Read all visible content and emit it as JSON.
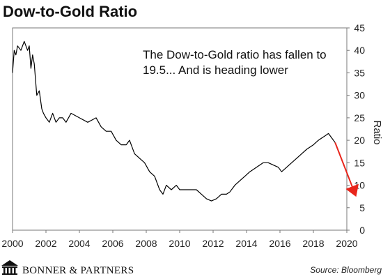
{
  "chart_data": {
    "type": "line",
    "title": "Dow-to-Gold Ratio",
    "ylabel": "Ratio",
    "xlim": [
      2000,
      2020
    ],
    "ylim": [
      0,
      45
    ],
    "x_ticks": [
      2000,
      2002,
      2004,
      2006,
      2008,
      2010,
      2012,
      2014,
      2016,
      2018,
      2020
    ],
    "y_ticks": [
      0,
      5,
      10,
      15,
      20,
      25,
      30,
      35,
      40,
      45
    ],
    "grid": false,
    "annotation": "The Dow-to-Gold ratio has fallen to 19.5... And is heading lower",
    "annotation_lines": [
      "The Dow-to-Gold ratio has fallen to",
      "19.5... And is heading lower"
    ],
    "series": [
      {
        "color": "#000000",
        "x": [
          2000.0,
          2000.1,
          2000.2,
          2000.3,
          2000.5,
          2000.7,
          2000.9,
          2001.0,
          2001.1,
          2001.2,
          2001.3,
          2001.45,
          2001.6,
          2001.75,
          2001.85,
          2002.0,
          2002.2,
          2002.4,
          2002.6,
          2002.8,
          2003.0,
          2003.2,
          2003.5,
          2004.0,
          2004.5,
          2005.0,
          2005.3,
          2005.6,
          2005.9,
          2006.2,
          2006.5,
          2006.8,
          2007.0,
          2007.3,
          2007.6,
          2007.9,
          2008.2,
          2008.5,
          2008.8,
          2009.0,
          2009.2,
          2009.5,
          2009.8,
          2010.0,
          2010.5,
          2011.0,
          2011.3,
          2011.6,
          2011.9,
          2012.2,
          2012.5,
          2012.8,
          2013.0,
          2013.3,
          2013.6,
          2013.9,
          2014.2,
          2014.6,
          2015.0,
          2015.3,
          2015.6,
          2015.9,
          2016.1,
          2016.4,
          2016.7,
          2017.0,
          2017.3,
          2017.6,
          2018.0,
          2018.3,
          2018.5,
          2018.7,
          2018.9,
          2019.1,
          2019.3
        ],
        "y": [
          35,
          40,
          39,
          41,
          40,
          42,
          40,
          41,
          36,
          39,
          37,
          30,
          31,
          27,
          26,
          25,
          24,
          26,
          24,
          25,
          25,
          24,
          26,
          25,
          24,
          25,
          23,
          22,
          22,
          20,
          19,
          19,
          20,
          17,
          16,
          15,
          13,
          12,
          9,
          8,
          10,
          9,
          10,
          9,
          9,
          9,
          8,
          7,
          6.5,
          7,
          8,
          8,
          8.5,
          10,
          11,
          12,
          13,
          14,
          15,
          15,
          14.5,
          14,
          13,
          14,
          15,
          16,
          17,
          18,
          19,
          20,
          20.5,
          21,
          21.5,
          20.5,
          19.5
        ]
      }
    ],
    "arrow": {
      "color": "#e8251b",
      "from": [
        2019.3,
        19.5
      ],
      "to": [
        2020.5,
        8
      ]
    }
  },
  "footer": {
    "logo_text": "BONNER & PARTNERS",
    "source": "Source: Bloomberg"
  }
}
